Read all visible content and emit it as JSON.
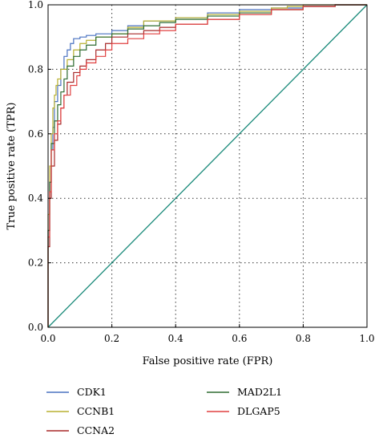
{
  "chart_data": {
    "type": "line",
    "xlabel": "False positive rate (FPR)",
    "ylabel": "True positive rate (TPR)",
    "xlim": [
      0,
      1
    ],
    "ylim": [
      0,
      1
    ],
    "x_ticks": [
      "0.0",
      "0.2",
      "0.4",
      "0.6",
      "0.8",
      "1.0"
    ],
    "y_ticks": [
      "0.0",
      "0.2",
      "0.4",
      "0.6",
      "0.8",
      "1.0"
    ],
    "grid": true,
    "legend_position": "bottom",
    "diagonal": {
      "x": [
        0,
        1
      ],
      "y": [
        0,
        1
      ],
      "color": "#1a8a7a"
    },
    "series": [
      {
        "name": "CDK1",
        "color": "#4a72c0",
        "x": [
          0,
          0.005,
          0.01,
          0.015,
          0.02,
          0.03,
          0.04,
          0.05,
          0.06,
          0.07,
          0.08,
          0.1,
          0.12,
          0.15,
          0.2,
          0.25,
          0.3,
          0.4,
          0.5,
          0.6,
          0.7,
          0.8,
          0.9,
          1.0
        ],
        "y": [
          0,
          0.3,
          0.45,
          0.55,
          0.62,
          0.7,
          0.75,
          0.8,
          0.84,
          0.86,
          0.88,
          0.895,
          0.9,
          0.905,
          0.91,
          0.92,
          0.935,
          0.95,
          0.96,
          0.975,
          0.985,
          0.99,
          0.995,
          1.0
        ]
      },
      {
        "name": "CCNB1",
        "color": "#b8b030",
        "x": [
          0,
          0.005,
          0.01,
          0.015,
          0.02,
          0.025,
          0.03,
          0.04,
          0.06,
          0.08,
          0.1,
          0.12,
          0.15,
          0.2,
          0.25,
          0.3,
          0.4,
          0.5,
          0.6,
          0.7,
          0.75,
          0.8,
          0.9,
          1.0
        ],
        "y": [
          0,
          0.35,
          0.5,
          0.6,
          0.68,
          0.72,
          0.75,
          0.77,
          0.8,
          0.83,
          0.86,
          0.88,
          0.89,
          0.9,
          0.91,
          0.93,
          0.95,
          0.96,
          0.97,
          0.98,
          0.99,
          0.995,
          1.0,
          1.0
        ]
      },
      {
        "name": "CCNA2",
        "color": "#a82828",
        "x": [
          0,
          0.005,
          0.01,
          0.02,
          0.03,
          0.04,
          0.05,
          0.06,
          0.08,
          0.1,
          0.12,
          0.15,
          0.18,
          0.2,
          0.25,
          0.3,
          0.35,
          0.4,
          0.5,
          0.6,
          0.7,
          0.8,
          0.9,
          1.0
        ],
        "y": [
          0,
          0.25,
          0.4,
          0.5,
          0.58,
          0.63,
          0.68,
          0.72,
          0.76,
          0.79,
          0.81,
          0.83,
          0.86,
          0.88,
          0.9,
          0.91,
          0.92,
          0.93,
          0.94,
          0.955,
          0.97,
          0.985,
          0.995,
          1.0
        ]
      },
      {
        "name": "MAD2L1",
        "color": "#2e6b30",
        "x": [
          0,
          0.005,
          0.01,
          0.02,
          0.03,
          0.04,
          0.05,
          0.06,
          0.08,
          0.1,
          0.12,
          0.15,
          0.2,
          0.25,
          0.3,
          0.35,
          0.4,
          0.5,
          0.6,
          0.7,
          0.8,
          0.9,
          1.0
        ],
        "y": [
          0,
          0.3,
          0.45,
          0.57,
          0.64,
          0.69,
          0.73,
          0.77,
          0.81,
          0.84,
          0.86,
          0.875,
          0.9,
          0.91,
          0.925,
          0.935,
          0.945,
          0.955,
          0.965,
          0.975,
          0.985,
          0.995,
          1.0
        ]
      },
      {
        "name": "DLGAP5",
        "color": "#e04040",
        "x": [
          0,
          0.005,
          0.01,
          0.02,
          0.03,
          0.04,
          0.05,
          0.07,
          0.09,
          0.1,
          0.12,
          0.15,
          0.18,
          0.2,
          0.25,
          0.3,
          0.35,
          0.4,
          0.5,
          0.6,
          0.7,
          0.8,
          0.9,
          1.0
        ],
        "y": [
          0,
          0.28,
          0.42,
          0.55,
          0.6,
          0.64,
          0.68,
          0.72,
          0.75,
          0.78,
          0.8,
          0.82,
          0.84,
          0.86,
          0.88,
          0.895,
          0.91,
          0.92,
          0.94,
          0.955,
          0.97,
          0.985,
          0.995,
          1.0
        ]
      }
    ],
    "legend_order": [
      "CDK1",
      "MAD2L1",
      "CCNB1",
      "DLGAP5",
      "CCNA2"
    ]
  }
}
